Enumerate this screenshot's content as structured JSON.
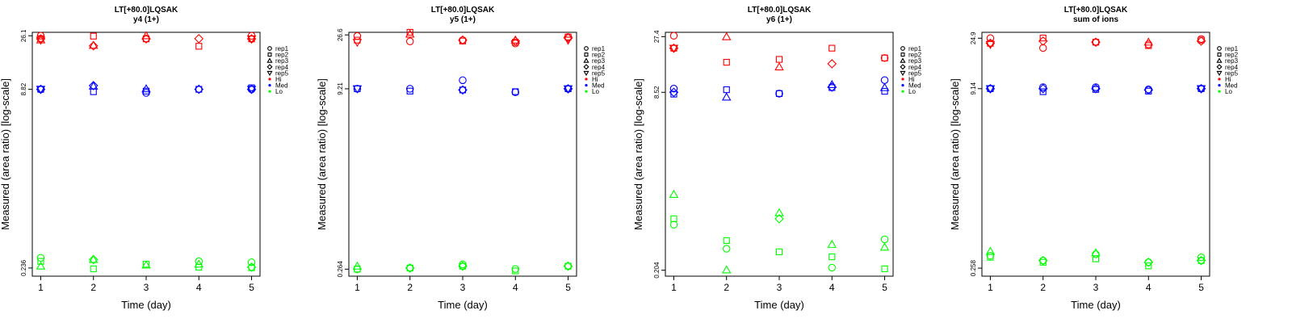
{
  "chart_data": [
    {
      "type": "scatter",
      "title": "LT[+80.0]LQSAK",
      "subtitle": "y4 (1+)",
      "xlabel": "Time (day)",
      "ylabel": "Measured (area ratio) [log-scale]",
      "yscale": "log",
      "ylim": [
        0.2,
        28
      ],
      "x_ticks": [
        1,
        2,
        3,
        4,
        5
      ],
      "y_ticks": [
        {
          "value": 0.236,
          "label": "0.236"
        },
        {
          "value": 8.82,
          "label": "8.82"
        },
        {
          "value": 26.1,
          "label": "26.1"
        }
      ],
      "colors": {
        "Hi": "#ff0000",
        "Med": "#0000ff",
        "Lo": "#00ff00"
      },
      "series": [
        {
          "name": "rep1",
          "marker": "circle",
          "Hi": [
            26.1,
            null,
            null,
            null,
            26.1
          ],
          "Med": [
            8.82,
            null,
            8.2,
            null,
            8.82
          ],
          "Lo": [
            0.29,
            null,
            null,
            0.27,
            0.265
          ]
        },
        {
          "name": "rep2",
          "marker": "square",
          "Hi": [
            24.7,
            25.9,
            24.5,
            21.1,
            24.5
          ],
          "Med": [
            8.82,
            8.4,
            8.5,
            8.82,
            9.1
          ],
          "Lo": [
            0.27,
            0.232,
            0.255,
            0.24,
            0.237
          ]
        },
        {
          "name": "rep3",
          "marker": "triangle-up",
          "Hi": [
            24.0,
            21.5,
            26.1,
            null,
            null
          ],
          "Med": [
            null,
            9.4,
            8.9,
            null,
            null
          ],
          "Lo": [
            0.245,
            0.28,
            0.25,
            0.255,
            null
          ]
        },
        {
          "name": "rep4",
          "marker": "diamond",
          "Hi": [
            24.5,
            21.3,
            24.5,
            24.6,
            24.5
          ],
          "Med": [
            8.82,
            9.5,
            null,
            8.82,
            8.82
          ],
          "Lo": [
            null,
            0.28,
            null,
            null,
            0.24
          ]
        },
        {
          "name": "rep5",
          "marker": "triangle-down",
          "Hi": [
            23.9,
            null,
            null,
            null,
            24.5
          ],
          "Med": [
            8.82,
            null,
            null,
            null,
            8.82
          ],
          "Lo": [
            null,
            null,
            null,
            null,
            null
          ]
        }
      ],
      "legend": {
        "position": "right",
        "entries": [
          "rep1",
          "rep2",
          "rep3",
          "rep4",
          "rep5",
          "Hi",
          "Med",
          "Lo"
        ]
      }
    },
    {
      "type": "scatter",
      "title": "LT[+80.0]LQSAK",
      "subtitle": "y5 (1+)",
      "xlabel": "Time (day)",
      "ylabel": "Measured (area ratio) [log-scale]",
      "yscale": "log",
      "ylim": [
        0.23,
        28
      ],
      "x_ticks": [
        1,
        2,
        3,
        4,
        5
      ],
      "y_ticks": [
        {
          "value": 0.264,
          "label": "0.264"
        },
        {
          "value": 9.21,
          "label": "9.21"
        },
        {
          "value": 26.6,
          "label": "26.6"
        }
      ],
      "colors": {
        "Hi": "#ff0000",
        "Med": "#0000ff",
        "Lo": "#00ff00"
      },
      "series": [
        {
          "name": "rep1",
          "marker": "circle",
          "Hi": [
            26.0,
            23.4,
            24.0,
            22.5,
            25.5
          ],
          "Med": [
            9.21,
            9.21,
            10.9,
            8.6,
            9.21
          ],
          "Lo": [
            0.264,
            0.27,
            0.29,
            0.265,
            0.28
          ]
        },
        {
          "name": "rep2",
          "marker": "square",
          "Hi": [
            24.0,
            28.0,
            23.6,
            23.0,
            25.5
          ],
          "Med": [
            9.21,
            8.8,
            9.0,
            8.7,
            9.21
          ],
          "Lo": [
            0.264,
            0.27,
            0.28,
            0.255,
            0.28
          ]
        },
        {
          "name": "rep3",
          "marker": "triangle-up",
          "Hi": [
            null,
            27.0,
            null,
            24.0,
            null
          ],
          "Med": [
            null,
            null,
            null,
            null,
            null
          ],
          "Lo": [
            0.28,
            null,
            null,
            null,
            null
          ]
        },
        {
          "name": "rep4",
          "marker": "diamond",
          "Hi": [
            null,
            null,
            24.0,
            23.5,
            25.0
          ],
          "Med": [
            null,
            null,
            9.0,
            null,
            9.21
          ],
          "Lo": [
            null,
            0.27,
            0.28,
            null,
            0.28
          ]
        },
        {
          "name": "rep5",
          "marker": "triangle-down",
          "Hi": [
            23.0,
            null,
            null,
            null,
            24.0
          ],
          "Med": [
            9.21,
            null,
            null,
            null,
            9.21
          ],
          "Lo": [
            null,
            null,
            null,
            null,
            null
          ]
        }
      ],
      "legend": {
        "position": "right",
        "entries": [
          "rep1",
          "rep2",
          "rep3",
          "rep4",
          "rep5",
          "Hi",
          "Med",
          "Lo"
        ]
      }
    },
    {
      "type": "scatter",
      "title": "LT[+80.0]LQSAK",
      "subtitle": "y6 (1+)",
      "xlabel": "Time (day)",
      "ylabel": "Measured (area ratio) [log-scale]",
      "yscale": "log",
      "ylim": [
        0.18,
        30
      ],
      "x_ticks": [
        1,
        2,
        3,
        4,
        5
      ],
      "y_ticks": [
        {
          "value": 0.204,
          "label": "0.204"
        },
        {
          "value": 8.52,
          "label": "8.52"
        },
        {
          "value": 27.4,
          "label": "27.4"
        }
      ],
      "colors": {
        "Hi": "#ff0000",
        "Med": "#0000ff",
        "Lo": "#00ff00"
      },
      "series": [
        {
          "name": "rep1",
          "marker": "circle",
          "Hi": [
            27.9,
            null,
            null,
            null,
            17.5
          ],
          "Med": [
            9.2,
            null,
            8.3,
            null,
            11.0
          ],
          "Lo": [
            0.53,
            0.32,
            null,
            0.215,
            0.39
          ]
        },
        {
          "name": "rep2",
          "marker": "square",
          "Hi": [
            21.5,
            16.0,
            17.0,
            21.5,
            17.5
          ],
          "Med": [
            8.2,
            9.0,
            8.3,
            9.4,
            8.7
          ],
          "Lo": [
            0.6,
            0.38,
            0.3,
            0.27,
            0.21
          ]
        },
        {
          "name": "rep3",
          "marker": "triangle-up",
          "Hi": [
            null,
            27.3,
            14.5,
            null,
            null
          ],
          "Med": [
            null,
            7.7,
            null,
            10.0,
            9.4
          ],
          "Lo": [
            1.0,
            0.205,
            0.68,
            0.35,
            0.33
          ]
        },
        {
          "name": "rep4",
          "marker": "diamond",
          "Hi": [
            21.5,
            null,
            null,
            15.5,
            null
          ],
          "Med": [
            8.52,
            null,
            null,
            9.5,
            null
          ],
          "Lo": [
            null,
            null,
            0.6,
            null,
            null
          ]
        },
        {
          "name": "rep5",
          "marker": "triangle-down",
          "Hi": [
            21.5,
            null,
            null,
            null,
            null
          ],
          "Med": [
            null,
            null,
            null,
            null,
            null
          ],
          "Lo": [
            null,
            null,
            null,
            null,
            null
          ]
        }
      ],
      "legend": {
        "position": "right",
        "entries": [
          "rep1",
          "rep2",
          "rep3",
          "rep4",
          "rep5",
          "Hi",
          "Med",
          "Lo"
        ]
      }
    },
    {
      "type": "scatter",
      "title": "LT[+80.0]LQSAK",
      "subtitle": "sum of ions",
      "xlabel": "Time (day)",
      "ylabel": "Measured (area ratio) [log-scale]",
      "yscale": "log",
      "ylim": [
        0.22,
        28
      ],
      "x_ticks": [
        1,
        2,
        3,
        4,
        5
      ],
      "y_ticks": [
        {
          "value": 0.258,
          "label": "0.258"
        },
        {
          "value": 9.14,
          "label": "9.14"
        },
        {
          "value": 24.9,
          "label": "24.9"
        }
      ],
      "colors": {
        "Hi": "#ff0000",
        "Med": "#0000ff",
        "Lo": "#00ff00"
      },
      "series": [
        {
          "name": "rep1",
          "marker": "circle",
          "Hi": [
            24.9,
            20.5,
            23.0,
            22.0,
            24.5
          ],
          "Med": [
            9.14,
            9.4,
            9.4,
            9.0,
            9.14
          ],
          "Lo": [
            0.33,
            0.3,
            0.34,
            0.29,
            0.32
          ]
        },
        {
          "name": "rep2",
          "marker": "square",
          "Hi": [
            22.5,
            25.0,
            23.0,
            21.5,
            24.0
          ],
          "Med": [
            9.14,
            8.6,
            9.0,
            8.7,
            9.14
          ],
          "Lo": [
            0.32,
            0.29,
            0.31,
            0.27,
            0.3
          ]
        },
        {
          "name": "rep3",
          "marker": "triangle-up",
          "Hi": [
            null,
            null,
            null,
            23.0,
            null
          ],
          "Med": [
            null,
            null,
            null,
            null,
            null
          ],
          "Lo": [
            0.36,
            null,
            0.35,
            null,
            null
          ]
        },
        {
          "name": "rep4",
          "marker": "diamond",
          "Hi": [
            22.5,
            23.5,
            23.0,
            null,
            23.5
          ],
          "Med": [
            9.14,
            9.14,
            9.14,
            8.9,
            9.14
          ],
          "Lo": [
            null,
            0.3,
            null,
            0.29,
            0.3
          ]
        },
        {
          "name": "rep5",
          "marker": "triangle-down",
          "Hi": [
            22.0,
            null,
            null,
            null,
            null
          ],
          "Med": [
            9.14,
            null,
            null,
            null,
            9.14
          ],
          "Lo": [
            null,
            null,
            null,
            null,
            null
          ]
        }
      ],
      "legend": {
        "position": "right",
        "entries": [
          "rep1",
          "rep2",
          "rep3",
          "rep4",
          "rep5",
          "Hi",
          "Med",
          "Lo"
        ]
      }
    }
  ]
}
